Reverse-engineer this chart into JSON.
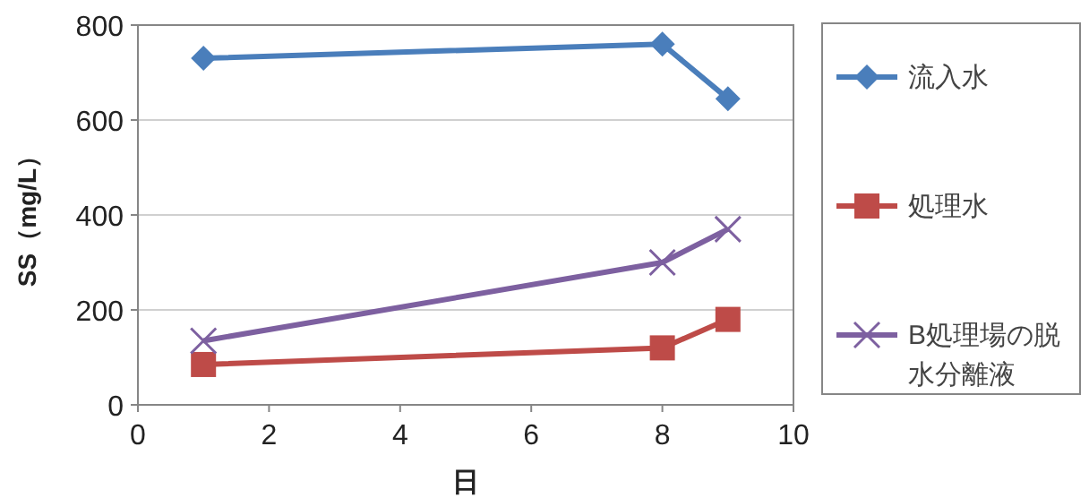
{
  "chart_data": {
    "type": "line",
    "xlabel": "日",
    "ylabel": "SS（mg/L）",
    "xlim": [
      0,
      10
    ],
    "xticks": [
      0,
      2,
      4,
      6,
      8,
      10
    ],
    "ylim": [
      0,
      800
    ],
    "yticks": [
      0,
      200,
      400,
      600,
      800
    ],
    "grid": "y",
    "legend": "right",
    "series": [
      {
        "name": "流入水",
        "color": "#4a7ebb",
        "marker": "diamond",
        "x": [
          1,
          8,
          9
        ],
        "values": [
          730,
          760,
          645
        ]
      },
      {
        "name": "処理水",
        "color": "#be4b48",
        "marker": "square",
        "x": [
          1,
          8,
          9
        ],
        "values": [
          85,
          120,
          180
        ]
      },
      {
        "name": "B処理場の脱水分離液",
        "color": "#7d60a0",
        "marker": "cross",
        "x": [
          1,
          8,
          9
        ],
        "values": [
          135,
          300,
          370
        ]
      }
    ]
  }
}
